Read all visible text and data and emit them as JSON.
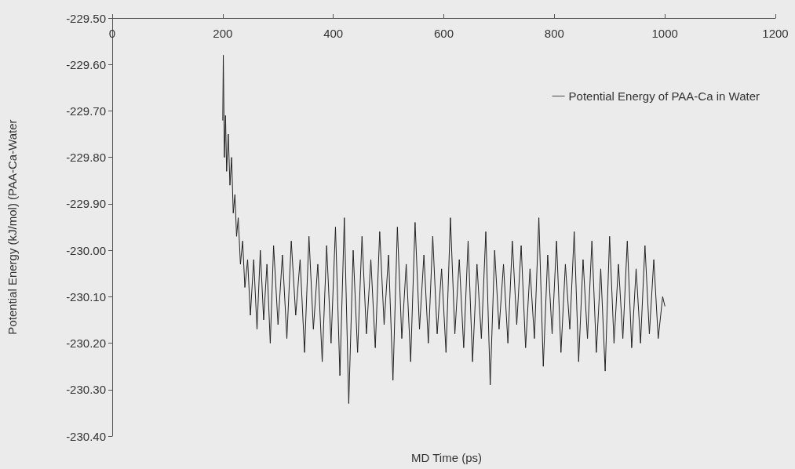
{
  "chart_data": {
    "type": "line",
    "xlabel": "MD Time (ps)",
    "ylabel": "Potential Energy (kJ/mol) (PAA-Ca-Water",
    "legend": "top right",
    "grid": false,
    "marker": "none",
    "line_style": "solid",
    "xlim": [
      0,
      1200
    ],
    "xticks": [
      0,
      200,
      400,
      600,
      800,
      1000,
      1200
    ],
    "ylim": [
      -230.4,
      -229.5
    ],
    "yticks": [
      {
        "value": -230.4,
        "label": "-230.40"
      },
      {
        "value": -230.3,
        "label": "-230.30"
      },
      {
        "value": -230.2,
        "label": "-230.20"
      },
      {
        "value": -230.1,
        "label": "-230.10"
      },
      {
        "value": -230.0,
        "label": "-230.00"
      },
      {
        "value": -229.9,
        "label": "-229.90"
      },
      {
        "value": -229.8,
        "label": "-229.80"
      },
      {
        "value": -229.7,
        "label": "-229.70"
      },
      {
        "value": -229.6,
        "label": "-229.60"
      },
      {
        "value": -229.5,
        "label": "-229.50"
      }
    ],
    "x": [
      200,
      201,
      203,
      205,
      207,
      210,
      213,
      216,
      219,
      222,
      225,
      228,
      232,
      236,
      240,
      245,
      250,
      256,
      262,
      268,
      274,
      280,
      286,
      292,
      300,
      308,
      316,
      324,
      332,
      340,
      348,
      356,
      364,
      372,
      380,
      388,
      396,
      404,
      412,
      420,
      428,
      436,
      444,
      452,
      460,
      468,
      476,
      484,
      492,
      500,
      508,
      516,
      524,
      532,
      540,
      548,
      556,
      564,
      572,
      580,
      588,
      596,
      604,
      612,
      620,
      628,
      636,
      644,
      652,
      660,
      668,
      676,
      684,
      692,
      700,
      708,
      716,
      724,
      732,
      740,
      748,
      756,
      764,
      772,
      780,
      788,
      796,
      804,
      812,
      820,
      828,
      836,
      844,
      852,
      860,
      868,
      876,
      884,
      892,
      900,
      908,
      916,
      924,
      932,
      940,
      948,
      956,
      964,
      972,
      980,
      988,
      996,
      1000
    ],
    "series": [
      {
        "name": "Potential Energy of PAA-Ca in Water",
        "color": "#222222",
        "values": [
          -229.72,
          -229.58,
          -229.8,
          -229.71,
          -229.83,
          -229.75,
          -229.86,
          -229.8,
          -229.92,
          -229.88,
          -229.97,
          -229.93,
          -230.03,
          -229.98,
          -230.08,
          -230.02,
          -230.14,
          -230.02,
          -230.17,
          -230.0,
          -230.15,
          -230.03,
          -230.2,
          -229.99,
          -230.16,
          -230.01,
          -230.19,
          -229.98,
          -230.14,
          -230.02,
          -230.22,
          -229.97,
          -230.17,
          -230.03,
          -230.24,
          -229.99,
          -230.2,
          -229.95,
          -230.27,
          -229.93,
          -230.33,
          -230.0,
          -230.22,
          -229.97,
          -230.18,
          -230.02,
          -230.21,
          -229.96,
          -230.16,
          -230.01,
          -230.28,
          -229.95,
          -230.19,
          -230.03,
          -230.24,
          -229.94,
          -230.17,
          -230.01,
          -230.2,
          -229.97,
          -230.18,
          -230.04,
          -230.22,
          -229.93,
          -230.18,
          -230.02,
          -230.21,
          -229.98,
          -230.24,
          -230.03,
          -230.19,
          -229.96,
          -230.29,
          -230.0,
          -230.17,
          -230.03,
          -230.2,
          -229.98,
          -230.16,
          -229.99,
          -230.21,
          -230.04,
          -230.19,
          -229.93,
          -230.25,
          -230.01,
          -230.18,
          -229.98,
          -230.22,
          -230.03,
          -230.17,
          -229.96,
          -230.24,
          -230.02,
          -230.19,
          -229.98,
          -230.22,
          -230.04,
          -230.26,
          -229.97,
          -230.2,
          -230.03,
          -230.19,
          -229.98,
          -230.21,
          -230.04,
          -230.2,
          -229.99,
          -230.18,
          -230.02,
          -230.19,
          -230.1,
          -230.12
        ]
      }
    ]
  }
}
